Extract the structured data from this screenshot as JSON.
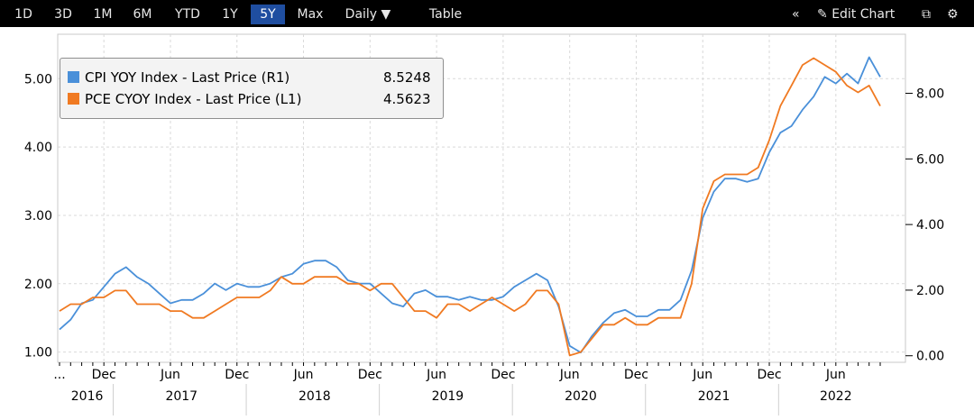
{
  "toolbar": {
    "ranges": [
      "1D",
      "3D",
      "1M",
      "6M",
      "YTD",
      "1Y",
      "5Y",
      "Max"
    ],
    "active_range": "5Y",
    "frequency": "Daily ▼",
    "table_label": "Table",
    "collapse_icon": "«",
    "edit_chart_label": "Edit Chart",
    "edit_icon": "✎",
    "export_icon": "⧉",
    "settings_icon": "⚙"
  },
  "legend": {
    "cpi_label": "CPI YOY Index - Last Price (R1)",
    "cpi_value": "8.5248",
    "pce_label": "PCE CYOY Index - Last Price (L1)",
    "pce_value": "4.5623"
  },
  "colors": {
    "cpi": "#4a90d9",
    "pce": "#f07a22",
    "grid": "#d9d9d9"
  },
  "chart_data": {
    "type": "line",
    "left_axis": {
      "ticks": [
        "1.00",
        "2.00",
        "3.00",
        "4.00",
        "5.00"
      ],
      "range": [
        0.85,
        5.65
      ],
      "series": "PCE CYOY Index"
    },
    "right_axis": {
      "ticks": [
        "0.00",
        "2.00",
        "4.00",
        "6.00",
        "8.00"
      ],
      "range": [
        -0.2,
        9.8
      ],
      "series": "CPI YOY Index"
    },
    "x_tick_labels": [
      "...",
      "Dec",
      "Jun",
      "Dec",
      "Jun",
      "Dec",
      "Jun",
      "Dec",
      "Jun",
      "Dec",
      "Jun",
      "Dec",
      "Jun"
    ],
    "x_year_labels": [
      "2016",
      "2017",
      "2018",
      "2019",
      "2020",
      "2021",
      "2022"
    ],
    "x_start": "2016-08",
    "series": [
      {
        "name": "CPI YOY Index - Last Price (R1)",
        "axis": "right",
        "values": [
          0.8,
          1.1,
          1.6,
          1.7,
          2.1,
          2.5,
          2.7,
          2.4,
          2.2,
          1.9,
          1.6,
          1.7,
          1.7,
          1.9,
          2.2,
          2.0,
          2.2,
          2.1,
          2.1,
          2.2,
          2.4,
          2.5,
          2.8,
          2.9,
          2.9,
          2.7,
          2.3,
          2.2,
          2.2,
          1.9,
          1.6,
          1.5,
          1.9,
          2.0,
          1.8,
          1.8,
          1.7,
          1.8,
          1.7,
          1.7,
          1.8,
          2.1,
          2.3,
          2.5,
          2.3,
          1.5,
          0.3,
          0.1,
          0.6,
          1.0,
          1.3,
          1.4,
          1.2,
          1.2,
          1.4,
          1.4,
          1.7,
          2.6,
          4.2,
          5.0,
          5.4,
          5.4,
          5.3,
          5.4,
          6.2,
          6.8,
          7.0,
          7.5,
          7.9,
          8.5,
          8.3,
          8.6,
          8.3,
          9.1,
          8.5
        ]
      },
      {
        "name": "PCE CYOY Index - Last Price (L1)",
        "axis": "left",
        "values": [
          1.6,
          1.7,
          1.7,
          1.8,
          1.8,
          1.9,
          1.9,
          1.7,
          1.7,
          1.7,
          1.6,
          1.6,
          1.5,
          1.5,
          1.6,
          1.7,
          1.8,
          1.8,
          1.8,
          1.9,
          2.1,
          2.0,
          2.0,
          2.1,
          2.1,
          2.1,
          2.0,
          2.0,
          1.9,
          2.0,
          2.0,
          1.8,
          1.6,
          1.6,
          1.5,
          1.7,
          1.7,
          1.6,
          1.7,
          1.8,
          1.7,
          1.6,
          1.7,
          1.9,
          1.9,
          1.7,
          0.95,
          1.0,
          1.2,
          1.4,
          1.4,
          1.5,
          1.4,
          1.4,
          1.5,
          1.5,
          1.5,
          2.0,
          3.1,
          3.5,
          3.6,
          3.6,
          3.6,
          3.7,
          4.1,
          4.6,
          4.9,
          5.2,
          5.3,
          5.2,
          5.1,
          4.9,
          4.8,
          4.9,
          4.6
        ]
      }
    ]
  }
}
